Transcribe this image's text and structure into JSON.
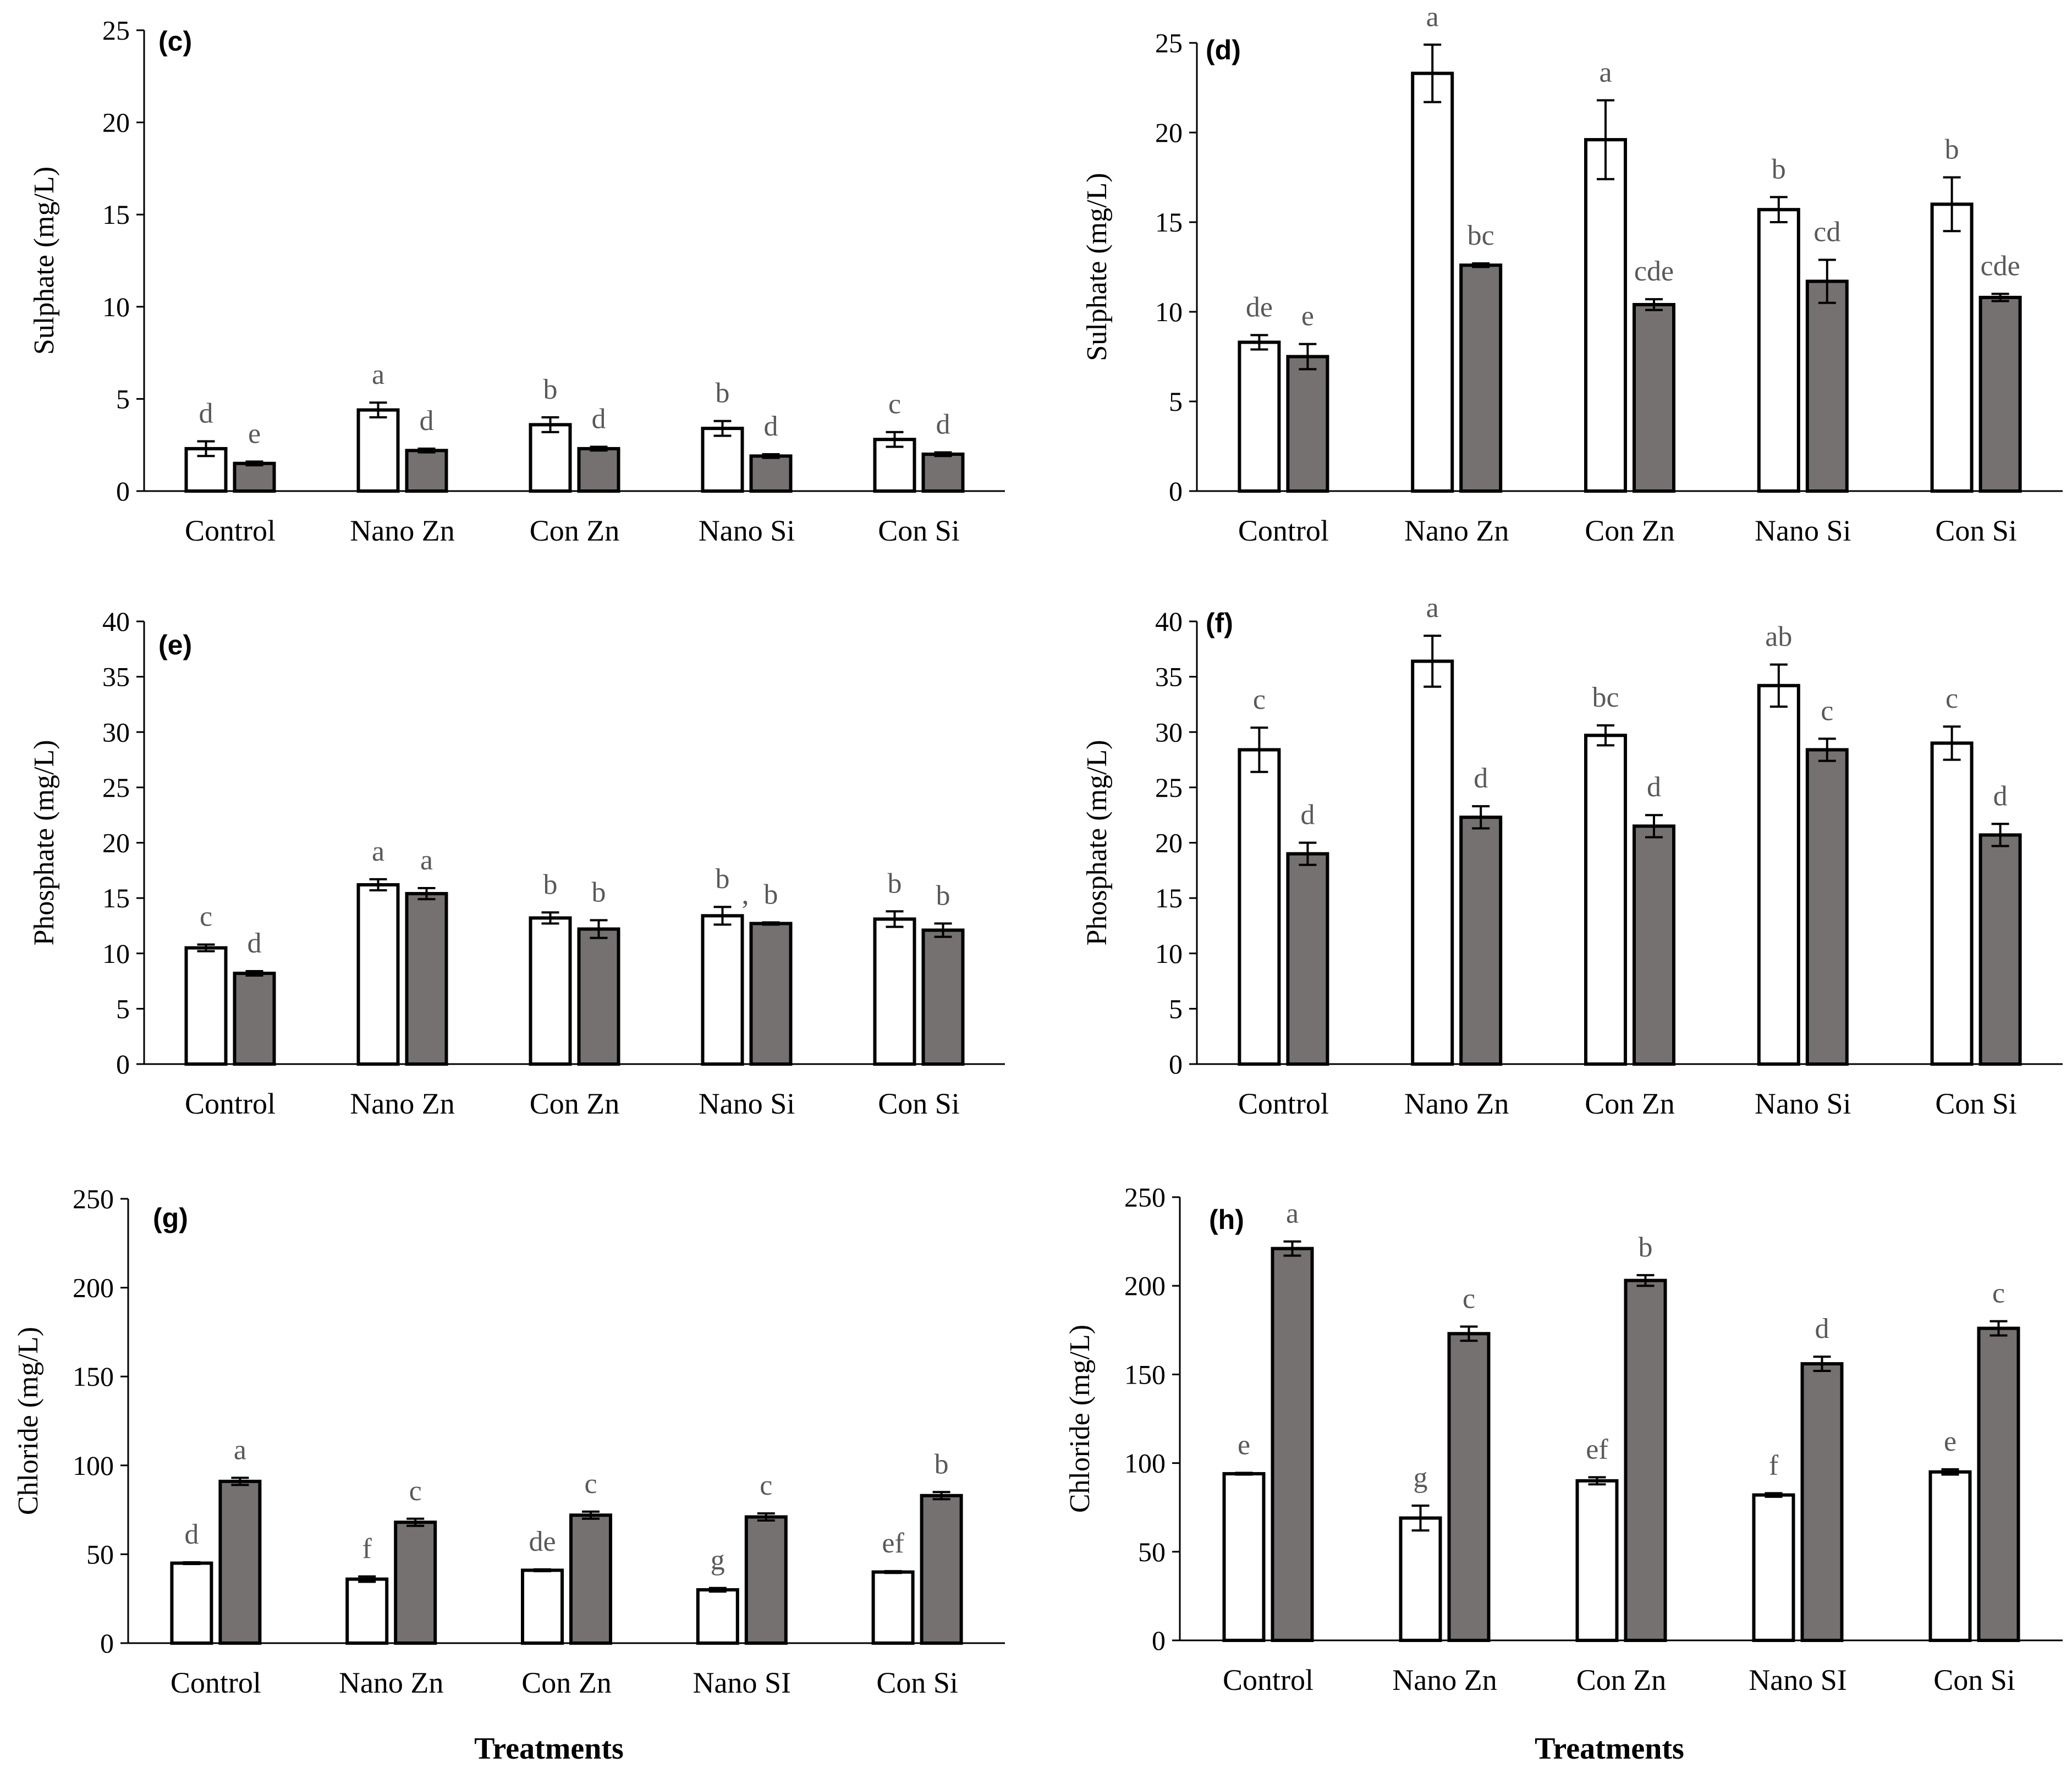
{
  "colors": {
    "control_bar": "#ffffff",
    "stress_bar": "#767171",
    "bar_outline": "#000000",
    "sig_letter": "#595959",
    "axis": "#000000"
  },
  "x_axis_title": "Treatments",
  "chart_data": [
    {
      "panel": "(c)",
      "type": "bar",
      "ylabel": "Sulphate (mg/L)",
      "ylim": [
        0,
        25
      ],
      "yticks": [
        0,
        5,
        10,
        15,
        20,
        25
      ],
      "categories": [
        "Control",
        "Nano Zn",
        "Con Zn",
        "Nano Si",
        "Con Si"
      ],
      "series": [
        {
          "name": "white",
          "values": [
            2.3,
            4.4,
            3.6,
            3.4,
            2.8
          ],
          "errors": [
            0.4,
            0.4,
            0.4,
            0.4,
            0.4
          ],
          "letters": [
            "d",
            "a",
            "b",
            "b",
            "c"
          ]
        },
        {
          "name": "grey",
          "values": [
            1.5,
            2.2,
            2.3,
            1.9,
            2.0
          ],
          "errors": [
            0.1,
            0.1,
            0.1,
            0.1,
            0.1
          ],
          "letters": [
            "e",
            "d",
            "d",
            "d",
            "d"
          ]
        }
      ]
    },
    {
      "panel": "(d)",
      "type": "bar",
      "ylabel": "Sulphate (mg/L)",
      "ylim": [
        0,
        25
      ],
      "yticks": [
        0,
        5,
        10,
        15,
        20,
        25
      ],
      "categories": [
        "Control",
        "Nano Zn",
        "Con Zn",
        "Nano Si",
        "Con Si"
      ],
      "series": [
        {
          "name": "white",
          "values": [
            8.3,
            23.3,
            19.6,
            15.7,
            16.0
          ],
          "errors": [
            0.4,
            1.6,
            2.2,
            0.7,
            1.5
          ],
          "letters": [
            "de",
            "a",
            "a",
            "b",
            "b"
          ]
        },
        {
          "name": "grey",
          "values": [
            7.5,
            12.6,
            10.4,
            11.7,
            10.8
          ],
          "errors": [
            0.7,
            0.1,
            0.3,
            1.2,
            0.2
          ],
          "letters": [
            "e",
            "bc",
            "cde",
            "cd",
            "cde"
          ]
        }
      ]
    },
    {
      "panel": "(e)",
      "type": "bar",
      "ylabel": "Phosphate (mg/L)",
      "ylim": [
        0,
        40
      ],
      "yticks": [
        0,
        5,
        10,
        15,
        20,
        25,
        30,
        35,
        40
      ],
      "categories": [
        "Control",
        "Nano Zn",
        "Con Zn",
        "Nano Si",
        "Con Si"
      ],
      "series": [
        {
          "name": "white",
          "values": [
            10.5,
            16.2,
            13.2,
            13.4,
            13.1
          ],
          "errors": [
            0.3,
            0.5,
            0.5,
            0.8,
            0.7
          ],
          "letters": [
            "c",
            "a",
            "b",
            "b",
            "b"
          ]
        },
        {
          "name": "grey",
          "values": [
            8.2,
            15.4,
            12.2,
            12.7,
            12.1
          ],
          "errors": [
            0.2,
            0.5,
            0.8,
            0.1,
            0.6
          ],
          "letters": [
            "d",
            "a",
            "b",
            "b",
            "b"
          ]
        }
      ],
      "stray_marks": [
        ", "
      ]
    },
    {
      "panel": "(f)",
      "type": "bar",
      "ylabel": "Phosphate (mg/L)",
      "ylim": [
        0,
        40
      ],
      "yticks": [
        0,
        5,
        10,
        15,
        20,
        25,
        30,
        35,
        40
      ],
      "categories": [
        "Control",
        "Nano Zn",
        "Con Zn",
        "Nano Si",
        "Con Si"
      ],
      "series": [
        {
          "name": "white",
          "values": [
            28.4,
            36.4,
            29.7,
            34.2,
            29.0
          ],
          "errors": [
            2.0,
            2.3,
            0.9,
            1.9,
            1.5
          ],
          "letters": [
            "c",
            "a",
            "bc",
            "ab",
            "c"
          ]
        },
        {
          "name": "grey",
          "values": [
            19.0,
            22.3,
            21.5,
            28.4,
            20.7
          ],
          "errors": [
            1.0,
            1.0,
            1.0,
            1.0,
            1.0
          ],
          "letters": [
            "d",
            "d",
            "d",
            "c",
            "d"
          ]
        }
      ]
    },
    {
      "panel": "(g)",
      "type": "bar",
      "ylabel": "Chloride (mg/L)",
      "ylim": [
        0,
        250
      ],
      "yticks": [
        0,
        50,
        100,
        150,
        200,
        250
      ],
      "categories": [
        "Control",
        "Nano Zn",
        "Con Zn",
        "Nano SI",
        "Con Si"
      ],
      "series": [
        {
          "name": "white",
          "values": [
            45,
            36,
            41,
            30,
            40
          ],
          "errors": [
            0.5,
            1.5,
            0.5,
            1.0,
            0.5
          ],
          "letters": [
            "d",
            "f",
            "de",
            "g",
            "ef"
          ]
        },
        {
          "name": "grey",
          "values": [
            91,
            68,
            72,
            71,
            83
          ],
          "errors": [
            2,
            2,
            2,
            2,
            2
          ],
          "letters": [
            "a",
            "c",
            "c",
            "c",
            "b"
          ]
        }
      ]
    },
    {
      "panel": "(h)",
      "type": "bar",
      "ylabel": "Chloride (mg/L)",
      "ylim": [
        0,
        250
      ],
      "yticks": [
        0,
        50,
        100,
        150,
        200,
        250
      ],
      "categories": [
        "Control",
        "Nano Zn",
        "Con Zn",
        "Nano SI",
        "Con Si"
      ],
      "series": [
        {
          "name": "white",
          "values": [
            94,
            69,
            90,
            82,
            95
          ],
          "errors": [
            0.5,
            7,
            2,
            1,
            1.5
          ],
          "letters": [
            "e",
            "g",
            "ef",
            "f",
            "e"
          ]
        },
        {
          "name": "grey",
          "values": [
            221,
            173,
            203,
            156,
            176
          ],
          "errors": [
            4,
            4,
            3,
            4,
            4
          ],
          "letters": [
            "a",
            "c",
            "b",
            "d",
            "c"
          ]
        }
      ]
    }
  ]
}
